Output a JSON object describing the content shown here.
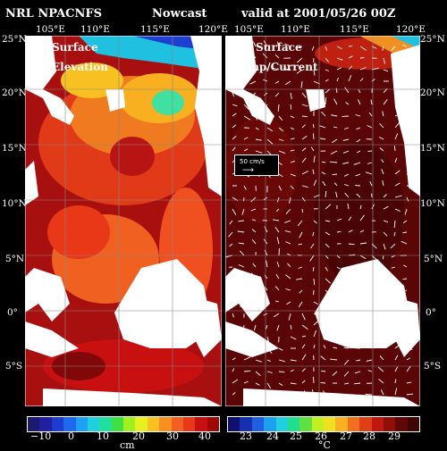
{
  "header": {
    "model": "NRL NPACNFS",
    "product": "Nowcast",
    "valid": "valid at 2001/05/26 00Z"
  },
  "left_panel": {
    "label_line1": "Surface",
    "label_line2": "Elevation",
    "lon_ticks": [
      "105°E",
      "110°E",
      "115°E",
      "120°E"
    ],
    "colorbar": {
      "ticks": [
        "−10",
        "0",
        "10",
        "20",
        "30",
        "40"
      ],
      "unit": "cm",
      "colors": [
        "#1a1a6e",
        "#2020a0",
        "#1e3cd0",
        "#1e6aee",
        "#1ea0f5",
        "#1ed0e0",
        "#20e0a0",
        "#40e040",
        "#a0f020",
        "#e8f020",
        "#f8c020",
        "#f89020",
        "#f06020",
        "#e83818",
        "#c81010",
        "#a00808"
      ]
    }
  },
  "right_panel": {
    "label_line1": "Surface",
    "label_line2": "Temp/Current",
    "lon_ticks": [
      "105°E",
      "110°E",
      "115°E",
      "120°E"
    ],
    "reference_vector": "50 cm/s",
    "colorbar": {
      "ticks": [
        "23",
        "24",
        "25",
        "26",
        "27",
        "28",
        "29"
      ],
      "unit": "°C",
      "colors": [
        "#101070",
        "#1830b0",
        "#1e60e0",
        "#1ea0f0",
        "#20d0e0",
        "#20e090",
        "#60e040",
        "#c0f020",
        "#f0e020",
        "#f8b020",
        "#f07020",
        "#e04018",
        "#c01810",
        "#901008",
        "#600808",
        "#400404"
      ]
    }
  },
  "lat_ticks_left": [
    "25°N",
    "20°N",
    "15°N",
    "10°N",
    "5°N",
    "0°",
    "5°S"
  ],
  "lat_ticks_right": [
    "25°N",
    "20°N",
    "15°N",
    "10°N",
    "5°N",
    "0°",
    "5°S"
  ],
  "colors": {
    "land": "#ffffff",
    "coast": "#ffffff",
    "grid": "#888888",
    "elev_high": "#a81010",
    "elev_mid": "#f05a18",
    "temp_warm": "#5a0606",
    "vector": "#ffffff"
  }
}
